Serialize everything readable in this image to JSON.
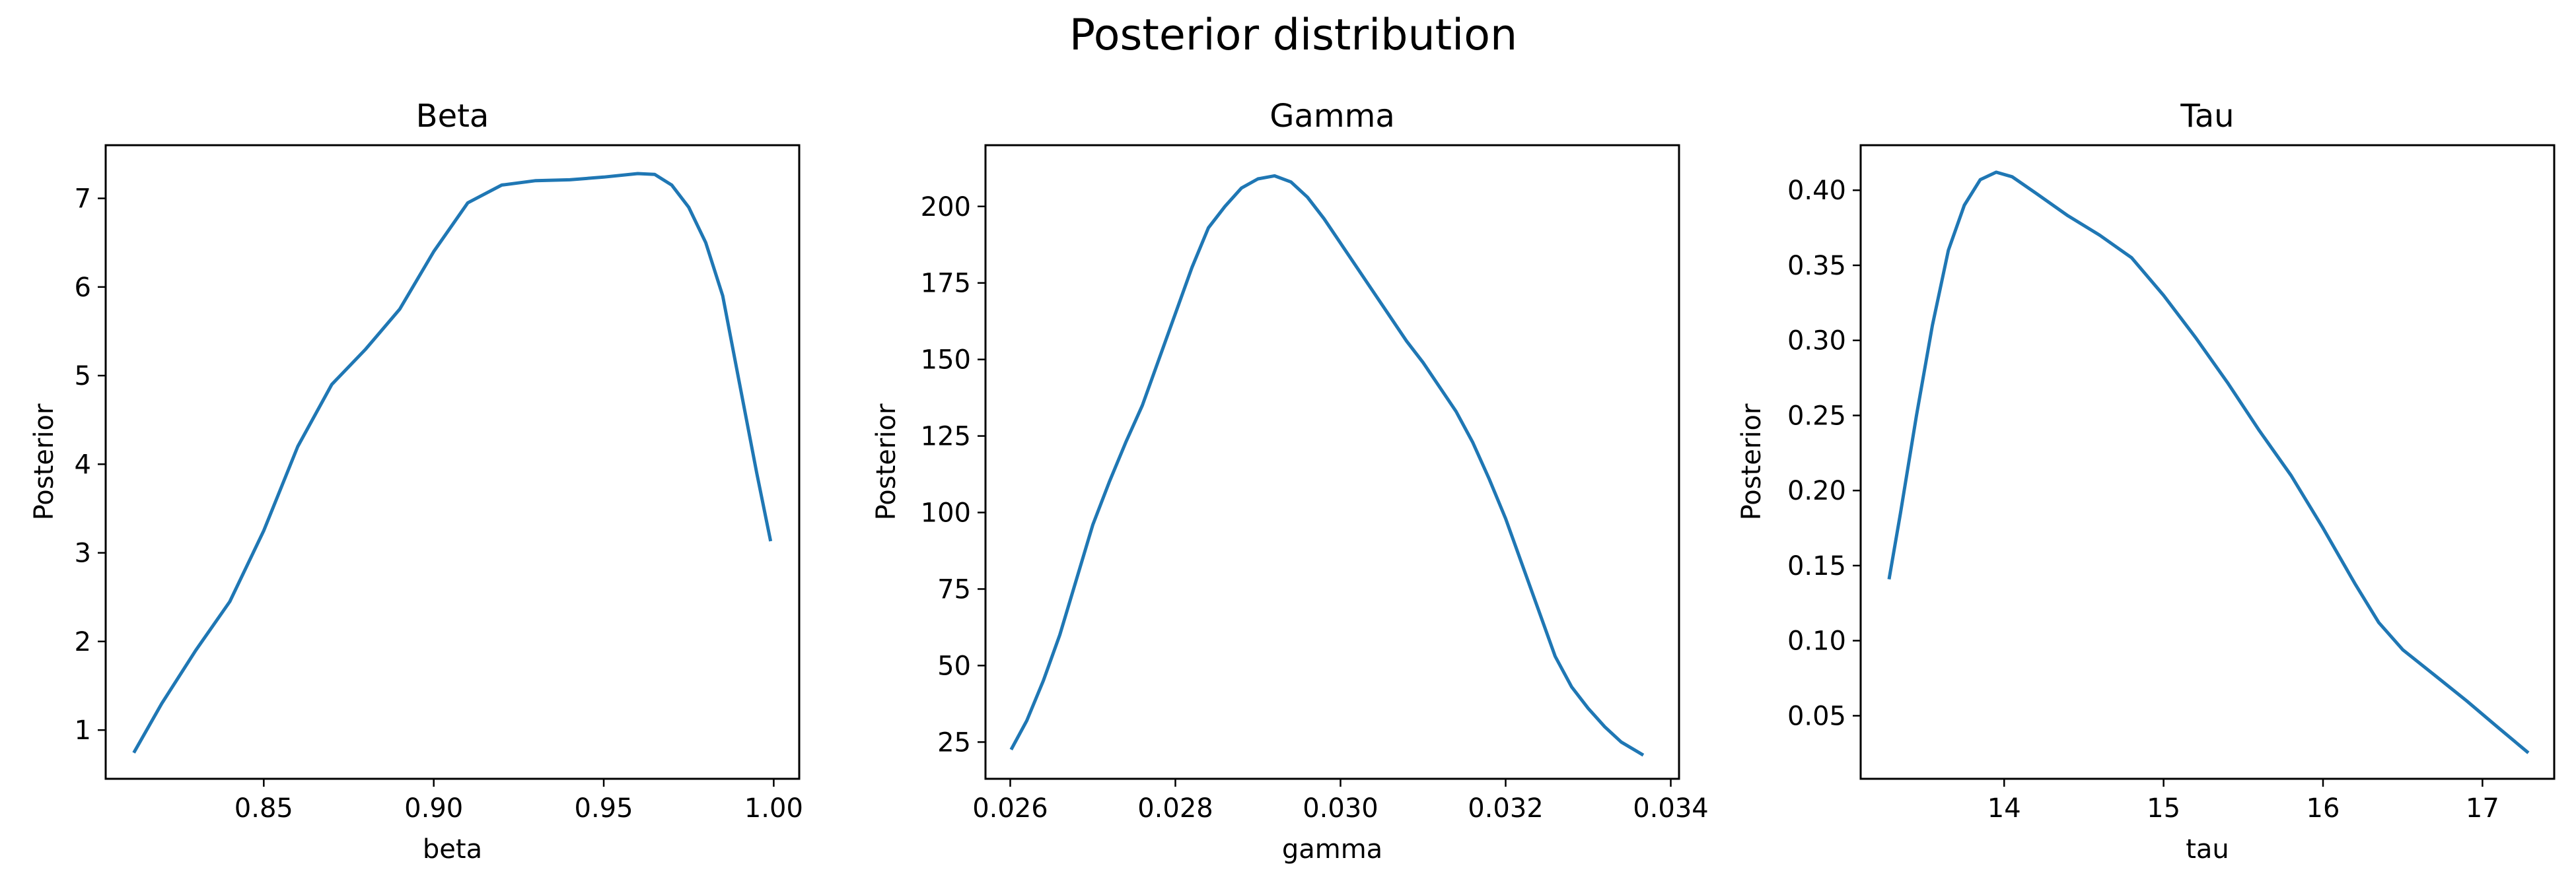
{
  "figure": {
    "title": "Posterior distribution",
    "line_color": "#1f77b4"
  },
  "chart_data": [
    {
      "type": "line",
      "title": "Beta",
      "xlabel": "beta",
      "ylabel": "Posterior",
      "xlim": [
        0.8035,
        1.0075
      ],
      "ylim": [
        0.45,
        7.6
      ],
      "xticks": [
        0.85,
        0.9,
        0.95,
        1.0
      ],
      "xtick_labels": [
        "0.85",
        "0.90",
        "0.95",
        "1.00"
      ],
      "yticks": [
        1,
        2,
        3,
        4,
        5,
        6,
        7
      ],
      "ytick_labels": [
        "1",
        "2",
        "3",
        "4",
        "5",
        "6",
        "7"
      ],
      "grid": false,
      "x": [
        0.812,
        0.82,
        0.83,
        0.84,
        0.85,
        0.86,
        0.87,
        0.88,
        0.89,
        0.9,
        0.91,
        0.92,
        0.93,
        0.94,
        0.95,
        0.96,
        0.965,
        0.97,
        0.975,
        0.98,
        0.985,
        0.99,
        0.995,
        0.999
      ],
      "y": [
        0.76,
        1.3,
        1.9,
        2.45,
        3.25,
        4.2,
        4.9,
        5.3,
        5.75,
        6.4,
        6.95,
        7.15,
        7.2,
        7.21,
        7.24,
        7.28,
        7.27,
        7.15,
        6.9,
        6.5,
        5.9,
        4.9,
        3.9,
        3.15
      ]
    },
    {
      "type": "line",
      "title": "Gamma",
      "xlabel": "gamma",
      "ylabel": "Posterior",
      "xlim": [
        0.0257,
        0.0341
      ],
      "ylim": [
        13,
        220
      ],
      "xticks": [
        0.026,
        0.028,
        0.03,
        0.032,
        0.034
      ],
      "xtick_labels": [
        "0.026",
        "0.028",
        "0.030",
        "0.032",
        "0.034"
      ],
      "yticks": [
        25,
        50,
        75,
        100,
        125,
        150,
        175,
        200
      ],
      "ytick_labels": [
        "25",
        "50",
        "75",
        "100",
        "125",
        "150",
        "175",
        "200"
      ],
      "grid": false,
      "x": [
        0.02602,
        0.0262,
        0.0264,
        0.0266,
        0.0268,
        0.027,
        0.0272,
        0.0274,
        0.0276,
        0.0278,
        0.028,
        0.0282,
        0.0284,
        0.0286,
        0.0288,
        0.029,
        0.0292,
        0.0294,
        0.0296,
        0.0298,
        0.03,
        0.0302,
        0.0304,
        0.0306,
        0.0308,
        0.031,
        0.0312,
        0.0314,
        0.0316,
        0.0318,
        0.032,
        0.0322,
        0.0324,
        0.0326,
        0.0328,
        0.033,
        0.0332,
        0.0334,
        0.03365
      ],
      "y": [
        23,
        32,
        45,
        60,
        78,
        96,
        110,
        123,
        135,
        150,
        165,
        180,
        193,
        200,
        206,
        209,
        210,
        208,
        203,
        196,
        188,
        180,
        172,
        164,
        156,
        149,
        141,
        133,
        123,
        111,
        98,
        83,
        68,
        53,
        43,
        36,
        30,
        25,
        21
      ]
    },
    {
      "type": "line",
      "title": "Tau",
      "xlabel": "tau",
      "ylabel": "Posterior",
      "xlim": [
        13.1,
        17.45
      ],
      "ylim": [
        0.008,
        0.43
      ],
      "xticks": [
        14,
        15,
        16,
        17
      ],
      "xtick_labels": [
        "14",
        "15",
        "16",
        "17"
      ],
      "yticks": [
        0.05,
        0.1,
        0.15,
        0.2,
        0.25,
        0.3,
        0.35,
        0.4
      ],
      "ytick_labels": [
        "0.05",
        "0.10",
        "0.15",
        "0.20",
        "0.25",
        "0.30",
        "0.35",
        "0.40"
      ],
      "grid": false,
      "x": [
        13.28,
        13.35,
        13.45,
        13.55,
        13.65,
        13.75,
        13.85,
        13.95,
        14.05,
        14.2,
        14.4,
        14.6,
        14.8,
        15.0,
        15.2,
        15.4,
        15.6,
        15.8,
        16.0,
        16.2,
        16.35,
        16.5,
        16.7,
        16.9,
        17.1,
        17.28
      ],
      "y": [
        0.142,
        0.185,
        0.25,
        0.31,
        0.36,
        0.39,
        0.407,
        0.412,
        0.409,
        0.398,
        0.383,
        0.37,
        0.355,
        0.33,
        0.302,
        0.272,
        0.24,
        0.21,
        0.175,
        0.138,
        0.112,
        0.094,
        0.077,
        0.06,
        0.042,
        0.026
      ]
    }
  ]
}
